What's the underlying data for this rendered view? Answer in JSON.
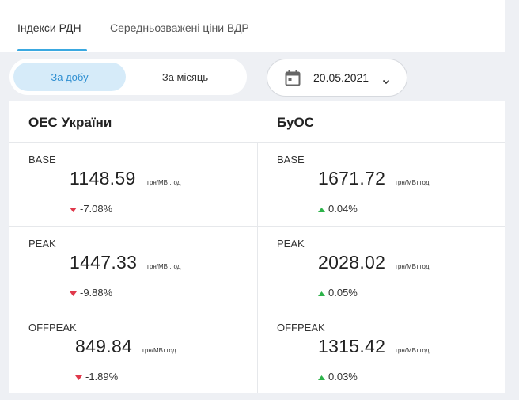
{
  "tabs": [
    {
      "label": "Індекси РДН",
      "active": true
    },
    {
      "label": "Середньозважені ціни ВДР",
      "active": false
    }
  ],
  "period": {
    "options": [
      {
        "label": "За добу",
        "active": true
      },
      {
        "label": "За місяць",
        "active": false
      }
    ]
  },
  "date_picker": {
    "value": "20.05.2021",
    "icon": "calendar-icon"
  },
  "colors": {
    "accent": "#3aa8e0",
    "down": "#e0384b",
    "up": "#2db34a"
  },
  "columns": [
    {
      "title": "ОЕС України",
      "rows": [
        {
          "label": "BASE",
          "value": "1148.59",
          "unit": "грн/МВт.год",
          "change": "-7.08%",
          "direction": "down"
        },
        {
          "label": "PEAK",
          "value": "1447.33",
          "unit": "грн/МВт.год",
          "change": "-9.88%",
          "direction": "down"
        },
        {
          "label": "OFFPEAK",
          "value": "849.84",
          "unit": "грн/МВт.год",
          "change": "-1.89%",
          "direction": "down"
        }
      ]
    },
    {
      "title": "БуОС",
      "rows": [
        {
          "label": "BASE",
          "value": "1671.72",
          "unit": "грн/МВт.год",
          "change": "0.04%",
          "direction": "up"
        },
        {
          "label": "PEAK",
          "value": "2028.02",
          "unit": "грн/МВт.год",
          "change": "0.05%",
          "direction": "up"
        },
        {
          "label": "OFFPEAK",
          "value": "1315.42",
          "unit": "грн/МВт.год",
          "change": "0.03%",
          "direction": "up"
        }
      ]
    }
  ]
}
